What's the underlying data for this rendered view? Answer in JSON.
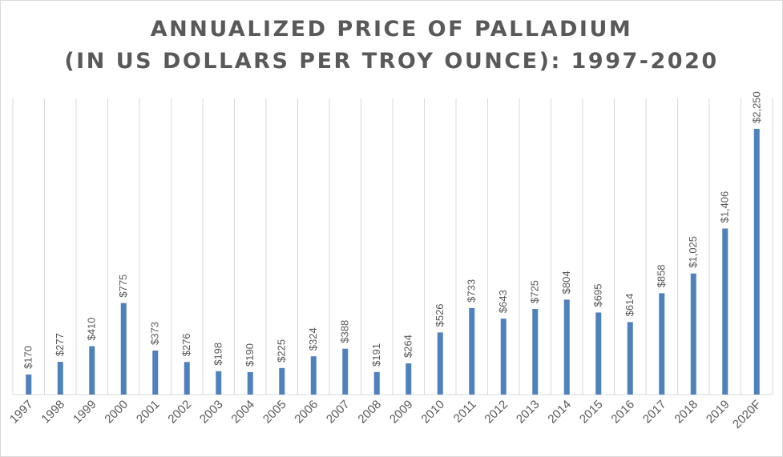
{
  "chart_data": {
    "type": "bar",
    "title_line1": "ANNUALIZED PRICE OF PALLADIUM",
    "title_line2": "(IN US DOLLARS PER TROY OUNCE): 1997-2020",
    "title": "ANNUALIZED PRICE OF PALLADIUM (IN US DOLLARS PER TROY OUNCE): 1997-2020",
    "xlabel": "",
    "ylabel": "",
    "categories": [
      "1997",
      "1998",
      "1999",
      "2000",
      "2001",
      "2002",
      "2003",
      "2004",
      "2005",
      "2006",
      "2007",
      "2008",
      "2009",
      "2010",
      "2011",
      "2012",
      "2013",
      "2014",
      "2015",
      "2016",
      "2017",
      "2018",
      "2019",
      "2020F"
    ],
    "values": [
      170,
      277,
      410,
      775,
      373,
      276,
      198,
      190,
      225,
      324,
      388,
      191,
      264,
      526,
      733,
      643,
      725,
      804,
      695,
      614,
      858,
      1025,
      1406,
      2250
    ],
    "data_labels": [
      "$170",
      "$277",
      "$410",
      "$775",
      "$373",
      "$276",
      "$198",
      "$190",
      "$225",
      "$324",
      "$388",
      "$191",
      "$264",
      "$526",
      "$733",
      "$643",
      "$725",
      "$804",
      "$695",
      "$614",
      "$858",
      "$1,025",
      "$1,406",
      "$2,250"
    ],
    "ylim": [
      0,
      2250
    ],
    "grid": "vertical category lines",
    "legend": "none",
    "bar_color": "#4f81bd",
    "grid_color": "#d9d9d9",
    "text_color": "#595959"
  }
}
